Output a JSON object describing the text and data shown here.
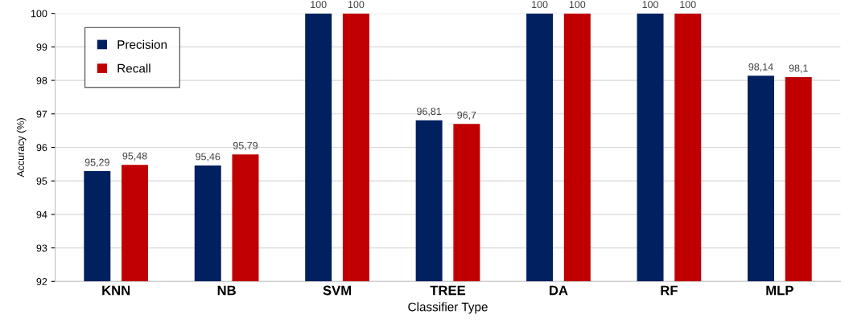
{
  "chart_data": {
    "type": "bar",
    "xlabel": "Classifier Type",
    "ylabel": "Accuracy (%)",
    "categories": [
      "KNN",
      "NB",
      "SVM",
      "TREE",
      "DA",
      "RF",
      "MLP"
    ],
    "series": [
      {
        "name": "Precision",
        "color": "#002060",
        "values": [
          95.29,
          95.46,
          100,
          96.81,
          100,
          100,
          98.14
        ],
        "value_labels": [
          "95,29",
          "95,46",
          "100",
          "96,81",
          "100",
          "100",
          "98,14"
        ]
      },
      {
        "name": "Recall",
        "color": "#c00000",
        "values": [
          95.48,
          95.79,
          100,
          96.7,
          100,
          100,
          98.1
        ],
        "value_labels": [
          "95,48",
          "95,79",
          "100",
          "96,7",
          "100",
          "100",
          "98,1"
        ]
      }
    ],
    "ylim": [
      92,
      100
    ],
    "yticks": [
      92,
      93,
      94,
      95,
      96,
      97,
      98,
      99,
      100
    ],
    "grid": "y",
    "legend": "top left"
  }
}
